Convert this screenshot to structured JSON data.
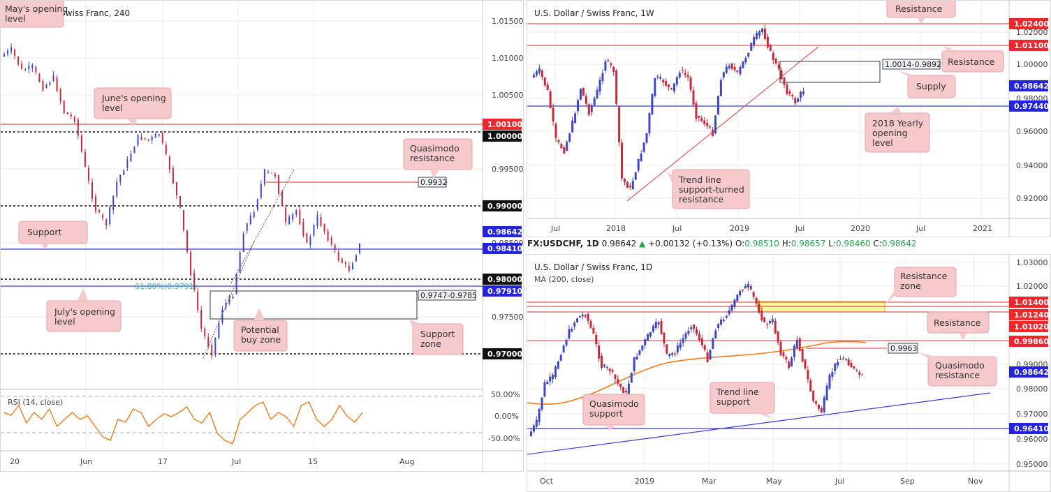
{
  "panels": {
    "h4": {
      "title": "U.S. Dollar / Swiss Franc, 240",
      "price_ticks": [
        "1.01500",
        "1.01000",
        "1.00500",
        "0.99500",
        "0.98500",
        "0.97500"
      ],
      "x_ticks": [
        "20",
        "Jun",
        "17",
        "Jul",
        "15",
        "Aug"
      ],
      "level_tags": [
        "1.00100",
        "1.00000",
        "0.99000",
        "0.98642",
        "0.98410",
        "0.98000",
        "0.97910",
        "0.97000"
      ],
      "box_labels": [
        "0.9932",
        "0.9747-0.9785"
      ],
      "fib_label": "61.80%(0.9791)",
      "callouts": [
        "May's opening level",
        "June's opening level",
        "Quasimodo resistance",
        "Support",
        "July's opening level",
        "Potential buy zone",
        "Support zone"
      ],
      "rsi": {
        "title": "RSI (14, close)",
        "ticks": [
          "50.00%",
          "0.00%",
          "-50.00%"
        ]
      }
    },
    "weekly": {
      "title": "U.S. Dollar / Swiss Franc, 1W",
      "price_ticks": [
        "1.02000",
        "1.00000",
        "0.98000",
        "0.96000",
        "0.94000",
        "0.92000"
      ],
      "x_ticks": [
        "Jul",
        "2018",
        "Jul",
        "2019",
        "Jul",
        "2020",
        "Jul",
        "2021"
      ],
      "level_tags": [
        "1.02400",
        "1.01100",
        "0.98642",
        "0.97440"
      ],
      "box_label": "1.0014-0.9892",
      "callouts": [
        "Resistance",
        "Resistance",
        "Supply",
        "2018 Yearly opening level",
        "Trend line support-turned resistance"
      ]
    },
    "daily": {
      "title": "U.S. Dollar / Swiss Franc, 1D",
      "ma_label": "MA (200, close)",
      "price_ticks": [
        "1.03000",
        "1.02000",
        "0.99000",
        "0.98000",
        "0.97000",
        "0.96000",
        "0.95000"
      ],
      "x_ticks": [
        "Oct",
        "2019",
        "Mar",
        "May",
        "Jul",
        "Sep",
        "Nov"
      ],
      "level_tags": [
        "1.01400",
        "1.01240",
        "1.01020",
        "0.99860",
        "0.98642",
        "0.96410"
      ],
      "box_label": "0.9963",
      "callouts": [
        "Resistance zone",
        "Resistance",
        "Quasimodo resistance",
        "Trend line support",
        "Quasimodo support"
      ]
    }
  },
  "quote": {
    "symbol": "FX:USDCHF, 1D",
    "last": "0.98642",
    "change": "+0.00132 (+0.13%)",
    "o_label": "O:",
    "o": "0.98510",
    "h_label": "H:",
    "h": "0.98657",
    "l_label": "L:",
    "l": "0.98460",
    "c_label": "C:",
    "c": "0.98642"
  },
  "colors": {
    "up": "#3f46c6",
    "down": "#c8283a",
    "resistance": "#e05a5a",
    "support": "#3b3bd6",
    "ma": "#f07a18",
    "rsi": "#f07a18",
    "callout_bg": "#f6c9cc",
    "zone": "#fff59d"
  },
  "chart_data": [
    {
      "type": "candlestick",
      "title": "U.S. Dollar / Swiss Franc, 240",
      "timeframe": "240",
      "levels": [
        1.001,
        1.0,
        0.99,
        0.98642,
        0.9841,
        0.98,
        0.9791,
        0.97
      ],
      "zones": [
        [
          0.9747,
          0.9785
        ]
      ],
      "annotations": [
        "0.9932",
        "61.80%(0.9791)"
      ]
    },
    {
      "type": "candlestick",
      "title": "U.S. Dollar / Swiss Franc, 1W",
      "timeframe": "1W",
      "levels": [
        1.024,
        1.011,
        0.98642,
        0.9744
      ],
      "zones": [
        [
          0.9892,
          1.0014
        ]
      ]
    },
    {
      "type": "candlestick",
      "title": "U.S. Dollar / Swiss Franc, 1D",
      "timeframe": "1D",
      "levels": [
        1.014,
        1.0124,
        1.0102,
        0.9986,
        0.98642,
        0.9641
      ],
      "zones": [
        [
          1.0124,
          1.014
        ]
      ],
      "annotations": [
        "0.9963"
      ],
      "ma_period": 200
    }
  ]
}
